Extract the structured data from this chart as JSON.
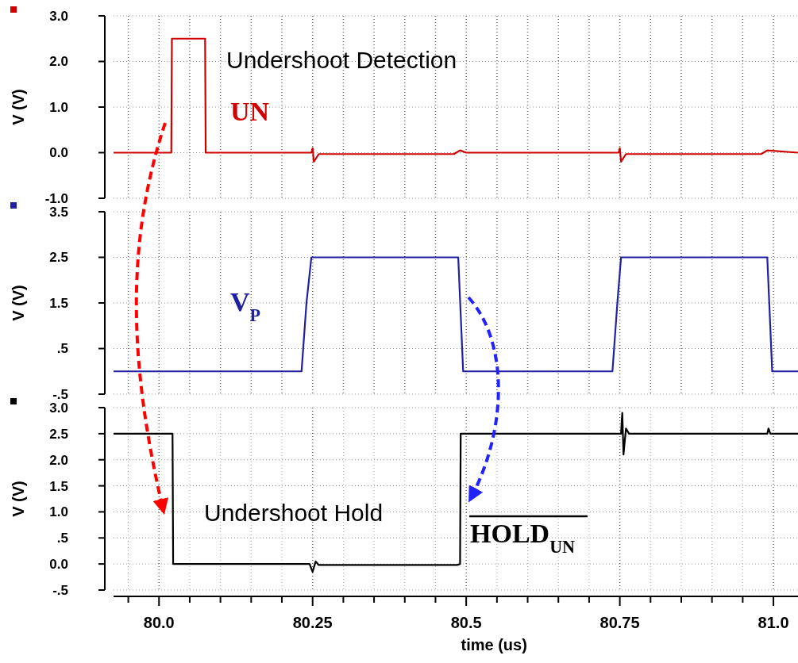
{
  "chart_data": [
    {
      "type": "line",
      "ylabel": "V (V)",
      "annotations": [
        "Undershoot Detection"
      ],
      "xlim": [
        79.926,
        81.04
      ],
      "xticks": [
        79.95,
        80.0,
        80.05,
        80.1,
        80.15,
        80.2,
        80.25,
        80.3,
        80.35,
        80.4,
        80.45,
        80.5,
        80.55,
        80.6,
        80.65,
        80.7,
        80.75,
        80.8,
        80.85,
        80.9,
        80.95,
        81.0
      ],
      "ylim": [
        -1,
        3
      ],
      "yticks": [
        {
          "value": 3,
          "label": "3.0"
        },
        {
          "value": 2,
          "label": "2.0"
        },
        {
          "value": 1,
          "label": "1.0"
        },
        {
          "value": 0,
          "label": "0.0"
        },
        {
          "value": -1,
          "label": "-1.0"
        }
      ],
      "tick_labels": "y",
      "grid": true,
      "marker": "none",
      "line_style": "solid",
      "series": [
        {
          "name": "UN",
          "color": "#d00000",
          "x": [
            79.926,
            80.02,
            80.021,
            80.075,
            80.076,
            80.248,
            80.25,
            80.252,
            80.26,
            80.48,
            80.49,
            80.5,
            80.748,
            80.75,
            80.752,
            80.76,
            80.98,
            80.99,
            81.04
          ],
          "values": [
            0,
            0,
            2.5,
            2.5,
            0,
            0,
            0.1,
            -0.2,
            -0.03,
            -0.03,
            0.05,
            0,
            0,
            0.1,
            -0.2,
            -0.03,
            -0.03,
            0.05,
            0
          ]
        }
      ]
    },
    {
      "type": "line",
      "ylabel": "V (V)",
      "xlim": [
        79.926,
        81.04
      ],
      "xticks": [
        79.95,
        80.0,
        80.05,
        80.1,
        80.15,
        80.2,
        80.25,
        80.3,
        80.35,
        80.4,
        80.45,
        80.5,
        80.55,
        80.6,
        80.65,
        80.7,
        80.75,
        80.8,
        80.85,
        80.9,
        80.95,
        81.0
      ],
      "ylim": [
        -0.5,
        3.5
      ],
      "yticks": [
        {
          "value": 3.5,
          "label": "3.5"
        },
        {
          "value": 2.5,
          "label": "2.5"
        },
        {
          "value": 1.5,
          "label": "1.5"
        },
        {
          "value": 0.5,
          "label": ".5"
        },
        {
          "value": -0.5,
          "label": "-.5"
        }
      ],
      "tick_labels": "y",
      "grid": true,
      "marker": "none",
      "line_style": "solid",
      "series": [
        {
          "name": "V$_{P}$",
          "color": "#2020a0",
          "x": [
            79.926,
            80.232,
            80.24,
            80.248,
            80.487,
            80.495,
            80.738,
            80.746,
            80.752,
            80.99,
            80.998,
            81.04
          ],
          "values": [
            0,
            0,
            1.5,
            2.5,
            2.5,
            0,
            0,
            1.5,
            2.5,
            2.5,
            0,
            0
          ]
        }
      ]
    },
    {
      "type": "line",
      "ylabel": "V (V)",
      "xlabel": "time (us)",
      "annotations": [
        "Undershoot Hold"
      ],
      "xlim": [
        79.926,
        81.04
      ],
      "xticks": [
        {
          "value": 79.95,
          "label": null
        },
        {
          "value": 80.0,
          "label": "80.0"
        },
        {
          "value": 80.05,
          "label": null
        },
        {
          "value": 80.1,
          "label": null
        },
        {
          "value": 80.15,
          "label": null
        },
        {
          "value": 80.2,
          "label": null
        },
        {
          "value": 80.25,
          "label": "80.25"
        },
        {
          "value": 80.3,
          "label": null
        },
        {
          "value": 80.35,
          "label": null
        },
        {
          "value": 80.4,
          "label": null
        },
        {
          "value": 80.45,
          "label": null
        },
        {
          "value": 80.5,
          "label": "80.5"
        },
        {
          "value": 80.55,
          "label": null
        },
        {
          "value": 80.6,
          "label": null
        },
        {
          "value": 80.65,
          "label": null
        },
        {
          "value": 80.7,
          "label": null
        },
        {
          "value": 80.75,
          "label": "80.75"
        },
        {
          "value": 80.8,
          "label": null
        },
        {
          "value": 80.85,
          "label": null
        },
        {
          "value": 80.9,
          "label": null
        },
        {
          "value": 80.95,
          "label": null
        },
        {
          "value": 81.0,
          "label": "81.0"
        }
      ],
      "ylim": [
        -0.5,
        3
      ],
      "yticks": [
        {
          "value": 3,
          "label": "3.0"
        },
        {
          "value": 2.5,
          "label": "2.5"
        },
        {
          "value": 2,
          "label": "2.0"
        },
        {
          "value": 1.5,
          "label": "1.5"
        },
        {
          "value": 1,
          "label": "1.0"
        },
        {
          "value": 0.5,
          "label": ".5"
        },
        {
          "value": 0,
          "label": "0.0"
        },
        {
          "value": -0.5,
          "label": "-.5"
        }
      ],
      "grid": true,
      "marker": "none",
      "line_style": "solid",
      "series": [
        {
          "name": "HOLD$_{UN}$",
          "color": "#000000",
          "x": [
            79.926,
            80.022,
            80.023,
            80.245,
            80.25,
            80.255,
            80.26,
            80.485,
            80.49,
            80.491,
            80.752,
            80.754,
            80.756,
            80.76,
            80.765,
            80.99,
            80.992,
            80.995,
            81.04
          ],
          "values": [
            2.5,
            2.5,
            0,
            0,
            -0.15,
            0.05,
            -0.02,
            -0.02,
            0,
            2.5,
            2.5,
            2.9,
            2.1,
            2.6,
            2.5,
            2.5,
            2.6,
            2.5,
            2.5
          ]
        }
      ]
    }
  ]
}
